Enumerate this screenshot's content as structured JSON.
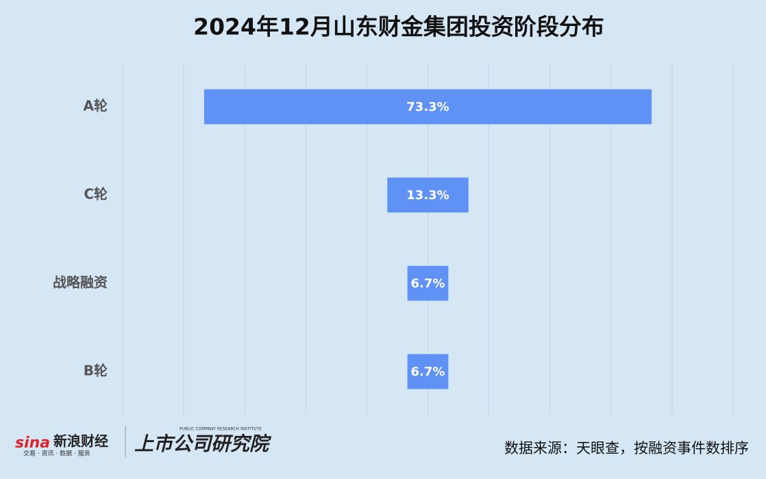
{
  "chart_data": {
    "type": "funnel",
    "title": "2024年12月山东财金集团投资阶段分布",
    "categories": [
      "A轮",
      "C轮",
      "战略融资",
      "B轮"
    ],
    "values": [
      73.3,
      13.3,
      6.7,
      6.7
    ],
    "value_labels": [
      "73.3%",
      "13.3%",
      "6.7%",
      "6.7%"
    ],
    "color": "#6092f6",
    "xlim": [
      0,
      100
    ],
    "grid": true
  },
  "footer": {
    "logo": "sina",
    "brand": "新浪财经",
    "tagline": "交易 · 资讯 · 数据 · 服务",
    "institute": "上市公司研究院",
    "institute_en": "PUBLIC COMPANY RESEARCH INSTITUTE",
    "source": "数据来源：天眼查，按融资事件数排序"
  }
}
